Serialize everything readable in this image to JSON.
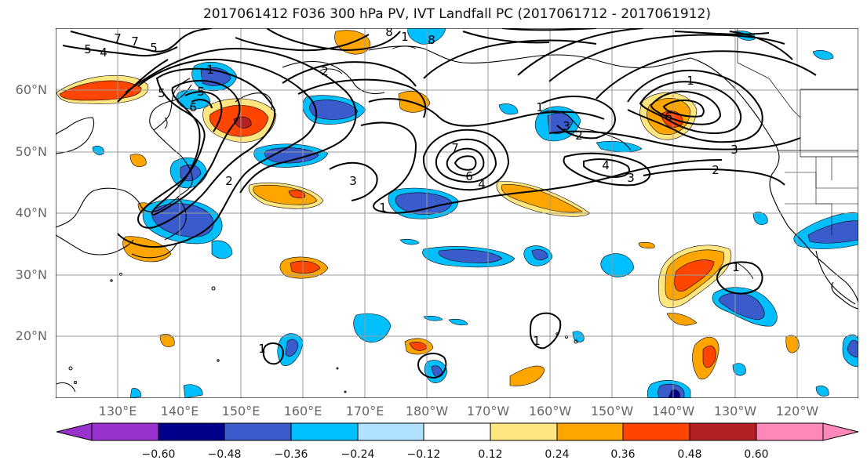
{
  "title": "2017061412 F036 300 hPa PV, IVT Landfall PC (2017061712 - 2017061912)",
  "map": {
    "latitude_labels": [
      "60°N",
      "50°N",
      "40°N",
      "30°N",
      "20°N"
    ],
    "longitude_labels": [
      "130°E",
      "140°E",
      "150°E",
      "160°E",
      "170°E",
      "180°W",
      "170°W",
      "160°W",
      "150°W",
      "140°W",
      "130°W",
      "120°W"
    ],
    "contour_labels": [
      "7",
      "5",
      "4",
      "5",
      "7",
      "5",
      "1",
      "5",
      "6",
      "2",
      "3",
      "1",
      "6",
      "8",
      "8",
      "1",
      "1",
      "3",
      "2",
      "7",
      "2",
      "6",
      "4",
      "1",
      "3",
      "4",
      "3",
      "2",
      "1",
      "1",
      "1"
    ]
  },
  "colorbar": {
    "tick_labels": [
      "−0.60",
      "−0.48",
      "−0.36",
      "−0.24",
      "−0.12",
      "0.12",
      "0.24",
      "0.36",
      "0.48",
      "0.60"
    ],
    "colors": [
      "#9932cc",
      "#00008b",
      "#3a5bcc",
      "#00bfff",
      "#b0e2ff",
      "#ffffff",
      "#ffe680",
      "#ffa500",
      "#ff4500",
      "#b22222",
      "#ff88bb"
    ]
  }
}
